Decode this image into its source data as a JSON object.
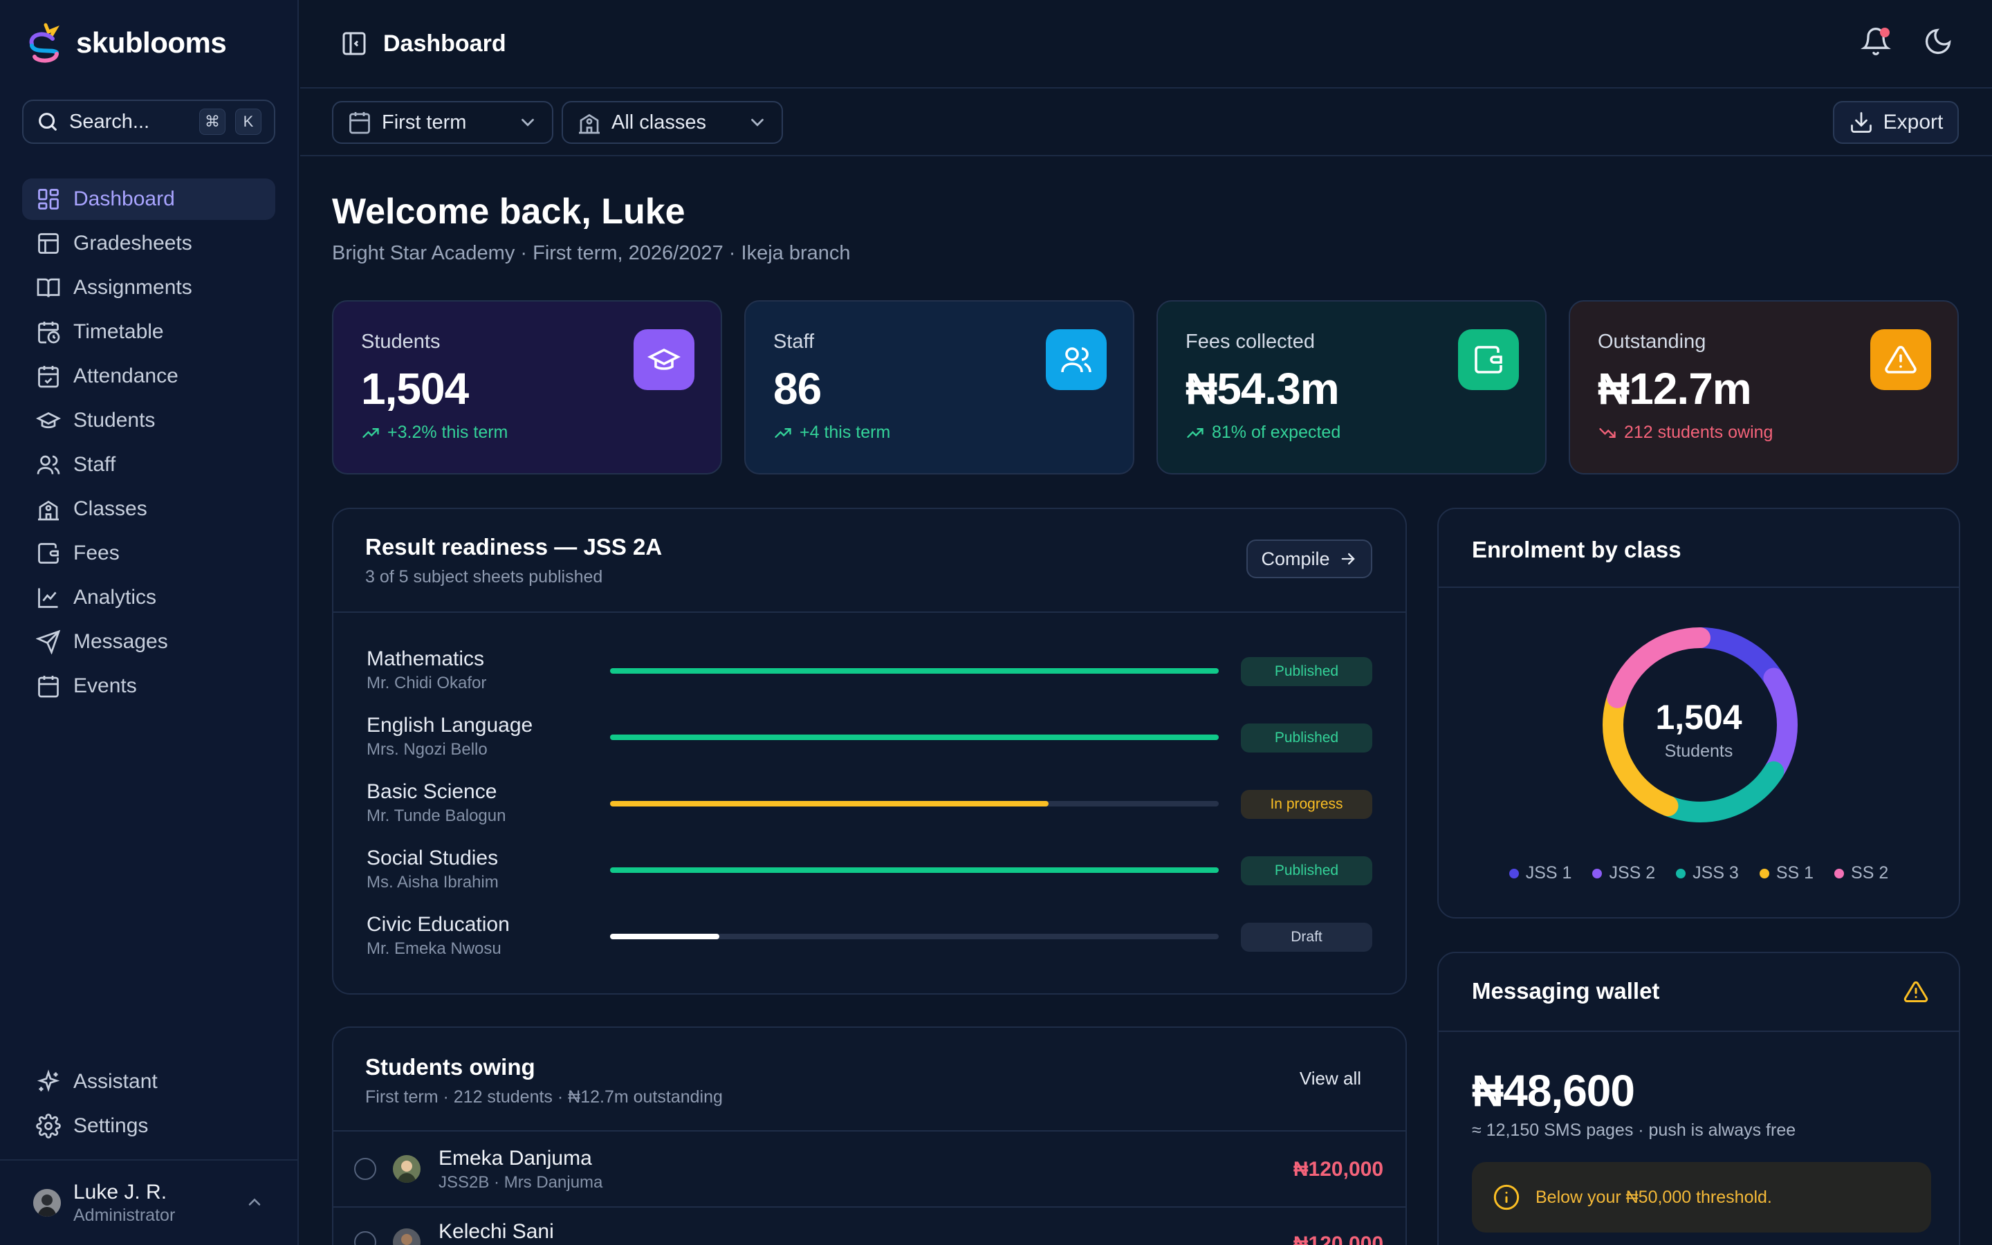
{
  "brand": {
    "name": "skublooms"
  },
  "search": {
    "label": "Search...",
    "kbd_cmd": "⌘",
    "kbd_key": "K"
  },
  "sidebar": {
    "items": [
      {
        "label": "Dashboard",
        "icon": "dashboard-icon"
      },
      {
        "label": "Gradesheets",
        "icon": "table-icon"
      },
      {
        "label": "Assignments",
        "icon": "book-icon"
      },
      {
        "label": "Timetable",
        "icon": "calendar-clock-icon"
      },
      {
        "label": "Attendance",
        "icon": "calendar-check-icon"
      },
      {
        "label": "Students",
        "icon": "graduation-cap-icon"
      },
      {
        "label": "Staff",
        "icon": "users-icon"
      },
      {
        "label": "Classes",
        "icon": "school-icon"
      },
      {
        "label": "Fees",
        "icon": "wallet-icon"
      },
      {
        "label": "Analytics",
        "icon": "line-chart-icon"
      },
      {
        "label": "Messages",
        "icon": "send-icon"
      },
      {
        "label": "Events",
        "icon": "calendar-icon"
      }
    ],
    "bottom": [
      {
        "label": "Assistant",
        "icon": "sparkles-icon"
      },
      {
        "label": "Settings",
        "icon": "gear-icon"
      }
    ],
    "user": {
      "name": "Luke J. R.",
      "role": "Administrator"
    }
  },
  "topbar": {
    "title": "Dashboard"
  },
  "filters": {
    "term": "First term",
    "classes": "All classes",
    "export_label": "Export"
  },
  "welcome": {
    "title": "Welcome back, Luke",
    "subtitle": "Bright Star Academy · First term, 2026/2027 · Ikeja branch"
  },
  "stats": [
    {
      "label": "Students",
      "value": "1,504",
      "delta": "+3.2% this term",
      "trend": "up",
      "color": "#8b5cf6"
    },
    {
      "label": "Staff",
      "value": "86",
      "delta": "+4 this term",
      "trend": "up",
      "color": "#0ea5e9"
    },
    {
      "label": "Fees collected",
      "value": "₦54.3m",
      "delta": "81% of expected",
      "trend": "up",
      "color": "#10b981"
    },
    {
      "label": "Outstanding",
      "value": "₦12.7m",
      "delta": "212 students owing",
      "trend": "down",
      "color": "#f59e0b"
    }
  ],
  "readiness": {
    "title": "Result readiness — JSS 2A",
    "subtitle": "3 of 5 subject sheets published",
    "compile_label": "Compile",
    "subjects": [
      {
        "name": "Mathematics",
        "teacher": "Mr. Chidi Okafor",
        "progress": 1.0,
        "status": "Published"
      },
      {
        "name": "English Language",
        "teacher": "Mrs. Ngozi Bello",
        "progress": 1.0,
        "status": "Published"
      },
      {
        "name": "Basic Science",
        "teacher": "Mr. Tunde Balogun",
        "progress": 0.72,
        "status": "In progress"
      },
      {
        "name": "Social Studies",
        "teacher": "Ms. Aisha Ibrahim",
        "progress": 1.0,
        "status": "Published"
      },
      {
        "name": "Civic Education",
        "teacher": "Mr. Emeka Nwosu",
        "progress": 0.18,
        "status": "Draft"
      }
    ]
  },
  "owing": {
    "title": "Students owing",
    "subtitle": "First term · 212 students · ₦12.7m outstanding",
    "view_all_label": "View all",
    "rows": [
      {
        "name": "Emeka Danjuma",
        "meta": "JSS2B · Mrs Danjuma",
        "amount": "₦120,000"
      },
      {
        "name": "Kelechi Sani",
        "meta": "",
        "amount": "₦120,000"
      }
    ]
  },
  "enrolment": {
    "title": "Enrolment by class",
    "total": "1,504",
    "total_label": "Students",
    "segments": [
      {
        "name": "JSS 1",
        "share": 0.16,
        "color": "#4f46e5"
      },
      {
        "name": "JSS 2",
        "share": 0.18,
        "color": "#8b5cf6"
      },
      {
        "name": "JSS 3",
        "share": 0.22,
        "color": "#14b8a6"
      },
      {
        "name": "SS 1",
        "share": 0.24,
        "color": "#fbbf24"
      },
      {
        "name": "SS 2",
        "share": 0.2,
        "color": "#f472b6"
      }
    ]
  },
  "wallet": {
    "title": "Messaging wallet",
    "balance": "₦48,600",
    "detail": "≈ 12,150 SMS pages · push is always free",
    "warning": "Below your ₦50,000 threshold."
  }
}
